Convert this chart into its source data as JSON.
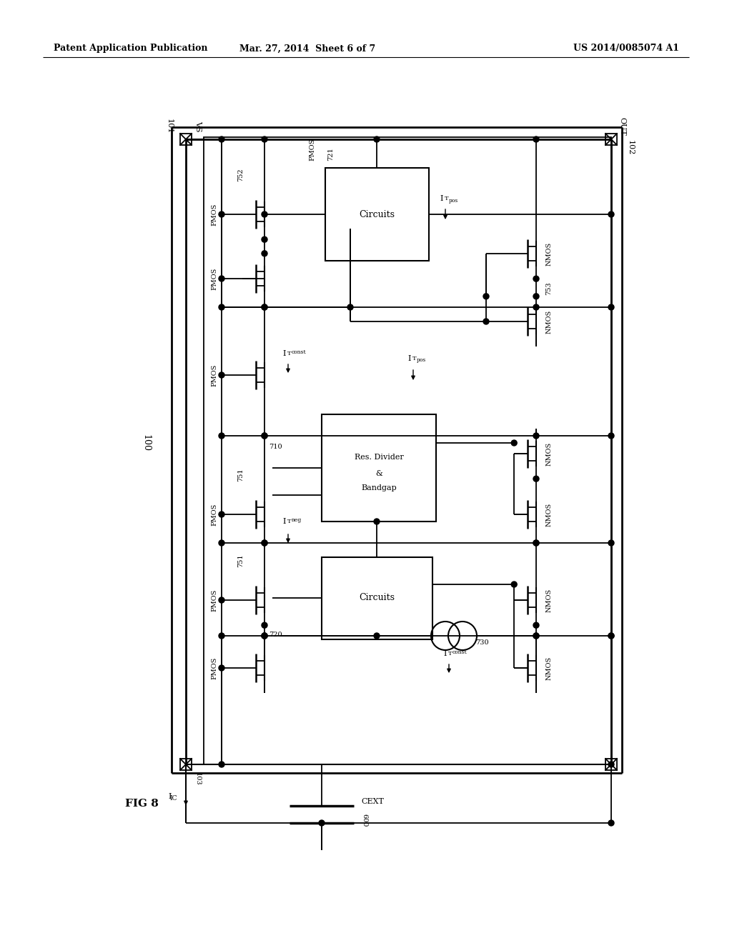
{
  "bg_color": "#ffffff",
  "line_color": "#000000",
  "header_left": "Patent Application Publication",
  "header_center": "Mar. 27, 2014  Sheet 6 of 7",
  "header_right": "US 2014/0085074 A1"
}
